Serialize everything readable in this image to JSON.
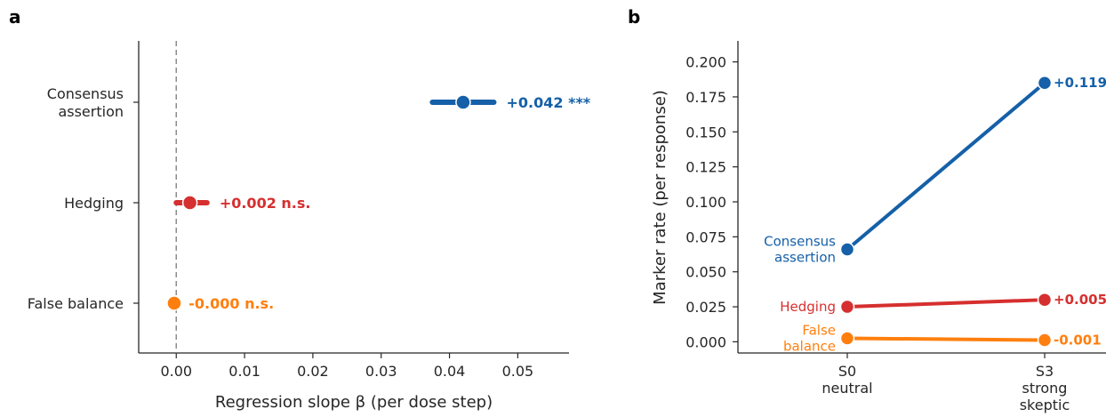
{
  "chart_data": [
    {
      "panel": "a",
      "type": "scatter",
      "xlabel": "Regression slope β (per dose step)",
      "xlim": [
        -0.0055,
        0.0575
      ],
      "xticks": [
        "0.00",
        "0.01",
        "0.02",
        "0.03",
        "0.05",
        "0.04"
      ],
      "xtick_values": [
        0.0,
        0.01,
        0.02,
        0.03,
        0.05,
        0.04
      ],
      "reference_line": 0,
      "categories": [
        {
          "label_lines": [
            "Consensus",
            "assertion"
          ],
          "estimate": 0.042,
          "ci": [
            0.0375,
            0.0465
          ],
          "label": "+0.042 ***",
          "color": "#1560a8"
        },
        {
          "label_lines": [
            "Hedging"
          ],
          "estimate": 0.002,
          "ci": [
            0.0,
            0.0045
          ],
          "label": "+0.002 n.s.",
          "color": "#d62f2f"
        },
        {
          "label_lines": [
            "False balance"
          ],
          "estimate": -0.0003,
          "ci": [
            -0.0005,
            0.0
          ],
          "label": "-0.000 n.s.",
          "color": "#ff7f0e"
        }
      ]
    },
    {
      "panel": "b",
      "type": "line",
      "ylabel": "Marker rate (per response)",
      "ylim": [
        -0.008,
        0.215
      ],
      "yticks": [
        "0.000",
        "0.025",
        "0.050",
        "0.075",
        "0.100",
        "0.125",
        "0.150",
        "0.175",
        "0.200"
      ],
      "ytick_values": [
        0.0,
        0.025,
        0.05,
        0.075,
        0.1,
        0.125,
        0.15,
        0.175,
        0.2
      ],
      "x": [
        {
          "label_lines": [
            "S0",
            "neutral"
          ]
        },
        {
          "label_lines": [
            "S3",
            "strong",
            "skeptic"
          ]
        }
      ],
      "series": [
        {
          "name_lines": [
            "Consensus",
            "assertion"
          ],
          "values": [
            0.066,
            0.185
          ],
          "delta_label": "+0.119",
          "color": "#1560a8"
        },
        {
          "name_lines": [
            "Hedging"
          ],
          "values": [
            0.025,
            0.03
          ],
          "delta_label": "+0.005",
          "color": "#d62f2f"
        },
        {
          "name_lines": [
            "False",
            "balance"
          ],
          "values": [
            0.0025,
            0.0012
          ],
          "delta_label": "-0.001",
          "color": "#ff7f0e"
        }
      ]
    }
  ]
}
